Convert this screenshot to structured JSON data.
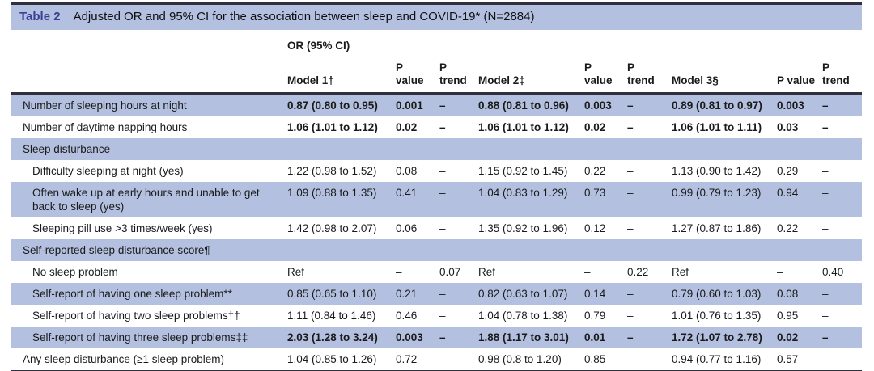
{
  "table": {
    "label": "Table 2",
    "title": "Adjusted OR and 95% CI for the association between sleep and COVID-19* (N=2884)",
    "group_header": "OR (95% CI)",
    "colors": {
      "highlight": "#b3c0e0",
      "rule_dark": "#30303f",
      "table_label_blue": "#3b3f96",
      "text": "#1a1a1a"
    },
    "columns": [
      {
        "id": "model-1",
        "lines": [
          "Model 1†"
        ]
      },
      {
        "id": "p-value-1",
        "lines": [
          "P",
          "value"
        ]
      },
      {
        "id": "p-trend-1",
        "lines": [
          "P",
          "trend"
        ]
      },
      {
        "id": "model-2",
        "lines": [
          "Model 2‡"
        ]
      },
      {
        "id": "p-value-2",
        "lines": [
          "P",
          "value"
        ]
      },
      {
        "id": "p-trend-2",
        "lines": [
          "P",
          "trend"
        ]
      },
      {
        "id": "model-3",
        "lines": [
          "Model 3§"
        ]
      },
      {
        "id": "p-value-3",
        "lines": [
          "P value"
        ]
      },
      {
        "id": "p-trend-3",
        "lines": [
          "P",
          "trend"
        ]
      }
    ],
    "rows": [
      {
        "label": "Number of sleeping hours at night",
        "indent": false,
        "section": false,
        "bold": true,
        "highlight": true,
        "cells": [
          "0.87 (0.80 to 0.95)",
          "0.001",
          "–",
          "0.88 (0.81 to 0.96)",
          "0.003",
          "–",
          "0.89 (0.81 to 0.97)",
          "0.003",
          "–"
        ]
      },
      {
        "label": "Number of daytime napping hours",
        "indent": false,
        "section": false,
        "bold": true,
        "highlight": false,
        "cells": [
          "1.06 (1.01 to 1.12)",
          "0.02",
          "–",
          "1.06 (1.01 to 1.12)",
          "0.02",
          "–",
          "1.06 (1.01 to 1.11)",
          "0.03",
          "–"
        ]
      },
      {
        "label": "Sleep disturbance",
        "indent": false,
        "section": true,
        "bold": false,
        "highlight": true,
        "cells": [
          "",
          "",
          "",
          "",
          "",
          "",
          "",
          "",
          ""
        ]
      },
      {
        "label": "Difficulty sleeping at night (yes)",
        "indent": true,
        "section": false,
        "bold": false,
        "highlight": false,
        "cells": [
          "1.22 (0.98 to 1.52)",
          "0.08",
          "–",
          "1.15 (0.92 to 1.45)",
          "0.22",
          "–",
          "1.13 (0.90 to 1.42)",
          "0.29",
          "–"
        ]
      },
      {
        "label": "Often wake up at early hours and unable to get back to sleep (yes)",
        "indent": true,
        "section": false,
        "bold": false,
        "highlight": true,
        "cells": [
          "1.09 (0.88 to 1.35)",
          "0.41",
          "–",
          "1.04 (0.83 to 1.29)",
          "0.73",
          "–",
          "0.99 (0.79 to 1.23)",
          "0.94",
          "–"
        ]
      },
      {
        "label": "Sleeping pill use >3 times/week (yes)",
        "indent": true,
        "section": false,
        "bold": false,
        "highlight": false,
        "cells": [
          "1.42 (0.98 to 2.07)",
          "0.06",
          "–",
          "1.35 (0.92 to 1.96)",
          "0.12",
          "–",
          "1.27 (0.87 to 1.86)",
          "0.22",
          "–"
        ]
      },
      {
        "label": "Self-reported sleep disturbance score¶",
        "indent": false,
        "section": true,
        "bold": false,
        "highlight": true,
        "cells": [
          "",
          "",
          "",
          "",
          "",
          "",
          "",
          "",
          ""
        ]
      },
      {
        "label": "No sleep problem",
        "indent": true,
        "section": false,
        "bold": false,
        "highlight": false,
        "cells": [
          "Ref",
          "–",
          "0.07",
          "Ref",
          "–",
          "0.22",
          "Ref",
          "–",
          "0.40"
        ]
      },
      {
        "label": "Self-report of having one sleep problem**",
        "indent": true,
        "section": false,
        "bold": false,
        "highlight": true,
        "cells": [
          "0.85 (0.65 to 1.10)",
          "0.21",
          "–",
          "0.82 (0.63 to 1.07)",
          "0.14",
          "–",
          "0.79 (0.60 to 1.03)",
          "0.08",
          "–"
        ]
      },
      {
        "label": "Self-report of having two sleep problems††",
        "indent": true,
        "section": false,
        "bold": false,
        "highlight": false,
        "cells": [
          "1.11 (0.84 to 1.46)",
          "0.46",
          "–",
          "1.04 (0.78 to 1.38)",
          "0.79",
          "–",
          "1.01 (0.76 to 1.35)",
          "0.95",
          "–"
        ]
      },
      {
        "label": "Self-report of having three sleep problems‡‡",
        "indent": true,
        "section": false,
        "bold": true,
        "highlight": true,
        "cells": [
          "2.03 (1.28 to 3.24)",
          "0.003",
          "–",
          "1.88 (1.17 to 3.01)",
          "0.01",
          "–",
          "1.72 (1.07 to 2.78)",
          "0.02",
          "–"
        ]
      },
      {
        "label": "Any sleep disturbance (≥1 sleep problem)",
        "indent": false,
        "section": false,
        "bold": false,
        "highlight": false,
        "cells": [
          "1.04 (0.85 to 1.26)",
          "0.72",
          "–",
          "0.98 (0.8 to 1.20)",
          "0.85",
          "–",
          "0.94 (0.77 to 1.16)",
          "0.57",
          "–"
        ]
      }
    ]
  }
}
